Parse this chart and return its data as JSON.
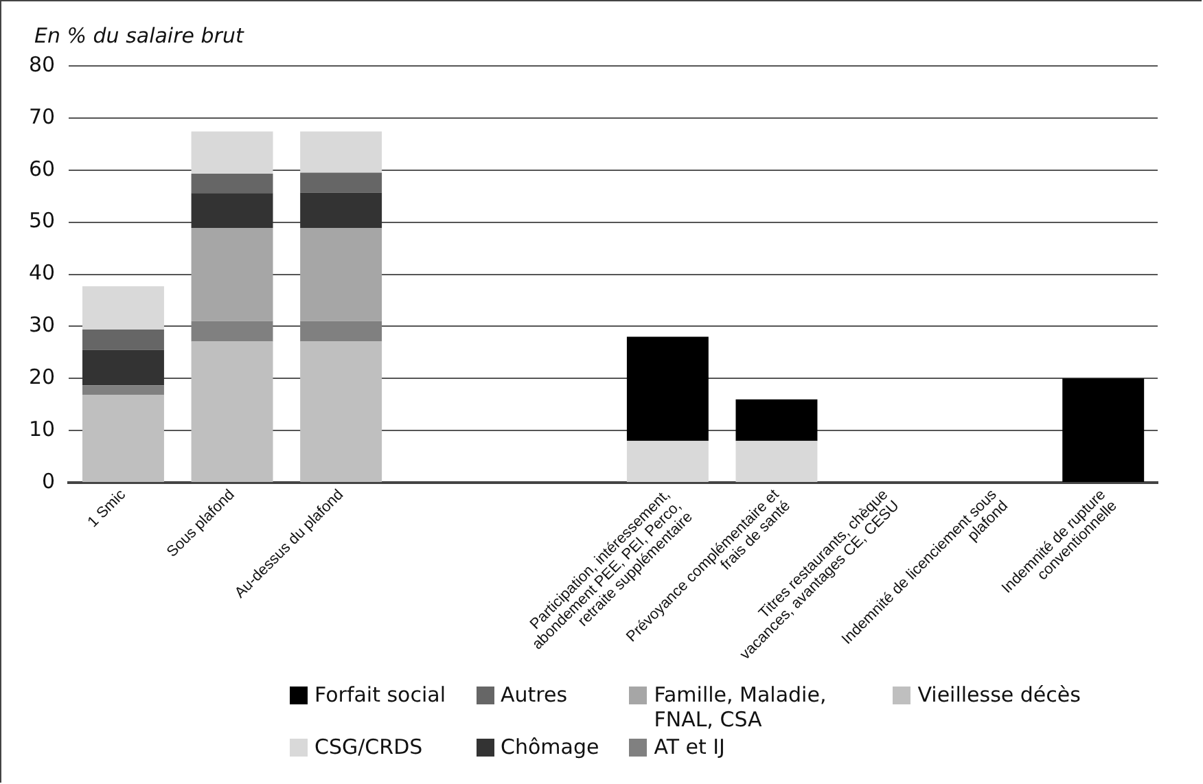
{
  "chart_data": {
    "type": "bar",
    "stacked": true,
    "ylabel": "En % du salaire brut",
    "categories": [
      "1 Smic",
      "Sous plafond",
      "Au-dessus du plafond",
      null,
      null,
      "Participation, intéressement, abondement PEE, PEI, Perco, retraite supplémentaire",
      "Prévoyance complémentaire et frais de santé",
      "Titres restaurants, chèque vacances, avantages CE, CESU",
      "Indemnité de licenciement sous plafond",
      "Indemnité de rupture conventionnelle"
    ],
    "series": [
      {
        "name": "Vieillesse décès",
        "color": "#bfbfbf",
        "values": [
          16.8,
          27.1,
          27.1,
          null,
          null,
          null,
          null,
          null,
          null,
          null
        ]
      },
      {
        "name": "AT et IJ",
        "color": "#808080",
        "values": [
          1.9,
          3.9,
          3.9,
          null,
          null,
          null,
          null,
          null,
          null,
          null
        ]
      },
      {
        "name": "Famille, Maladie, FNAL, CSA",
        "color": "#a6a6a6",
        "values": [
          null,
          17.9,
          17.9,
          null,
          null,
          null,
          null,
          null,
          null,
          null
        ]
      },
      {
        "name": "Chômage",
        "color": "#333333",
        "values": [
          6.8,
          6.7,
          6.8,
          null,
          null,
          null,
          null,
          null,
          null,
          null
        ]
      },
      {
        "name": "Autres",
        "color": "#666666",
        "values": [
          3.9,
          3.7,
          3.8,
          null,
          null,
          null,
          null,
          null,
          null,
          null
        ]
      },
      {
        "name": "CSG/CRDS",
        "color": "#d9d9d9",
        "values": [
          8.3,
          8.1,
          7.9,
          null,
          null,
          8,
          8,
          null,
          null,
          null
        ]
      },
      {
        "name": "Forfait social",
        "color": "#000000",
        "values": [
          null,
          null,
          null,
          null,
          null,
          20,
          8,
          null,
          null,
          20
        ]
      }
    ],
    "ylim": [
      0,
      80
    ],
    "yticks": [
      0,
      10,
      20,
      30,
      40,
      50,
      60,
      70,
      80
    ],
    "grid": "y",
    "legend": "bottom"
  }
}
